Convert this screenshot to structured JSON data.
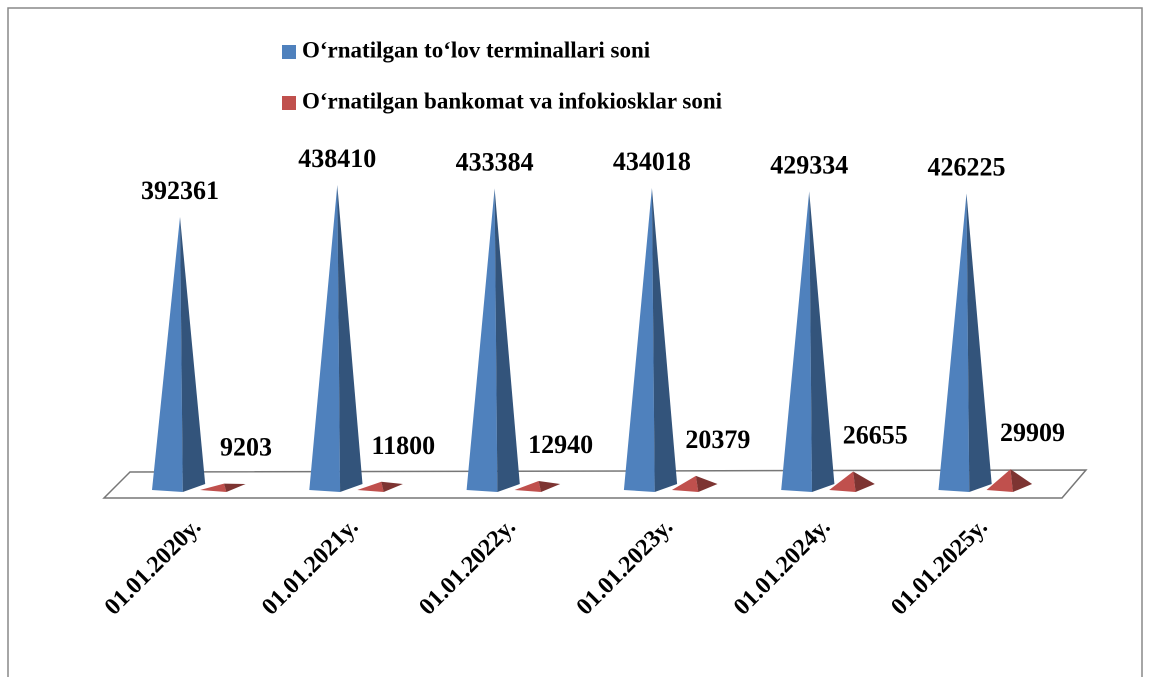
{
  "chart_data": {
    "type": "pyramid",
    "categories": [
      "01.01.2020y.",
      "01.01.2021y.",
      "01.01.2022y.",
      "01.01.2023y.",
      "01.01.2024y.",
      "01.01.2025y."
    ],
    "series": [
      {
        "name": "O‘rnatilgan to‘lov terminallari soni",
        "color": "#4f81bd",
        "values": [
          392361,
          438410,
          433384,
          434018,
          429334,
          426225
        ]
      },
      {
        "name": "O‘rnatilgan bankomat va infokiosklar soni",
        "color": "#c0504d",
        "values": [
          9203,
          11800,
          12940,
          20379,
          26655,
          29909
        ]
      }
    ]
  }
}
